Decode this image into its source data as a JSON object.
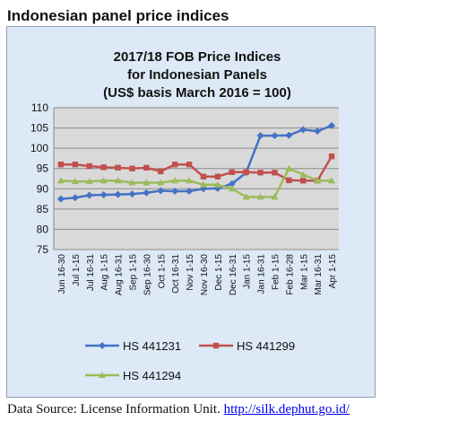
{
  "page": {
    "heading": "Indonesian panel price indices",
    "source_prefix": "Data Source: License Information Unit. ",
    "source_link": "http://silk.dephut.go.id/"
  },
  "chart_data": {
    "type": "line",
    "title_lines": [
      "2017/18 FOB Price Indices",
      "for Indonesian Panels",
      "(US$ basis March 2016 = 100)"
    ],
    "categories": [
      "Jun 16-30",
      "Jul 1-15",
      "Jul 16-31",
      "Aug 1-15",
      "Aug 16-31",
      "Sep 1-15",
      "Sep 16-30",
      "Oct 1-15",
      "Oct 16-31",
      "Nov 1-15",
      "Nov 16-30",
      "Dec 1-15",
      "Dec 16-31",
      "Jan 1-15",
      "Jan 16-31",
      "Feb 1-15",
      "Feb 16-28",
      "Mar 1-15",
      "Mar 16-31",
      "Apr 1-15"
    ],
    "ylim": [
      75,
      110
    ],
    "yticks": [
      75,
      80,
      85,
      90,
      95,
      100,
      105,
      110
    ],
    "grid": true,
    "legend_position": "bottom",
    "series": [
      {
        "name": "HS 441231",
        "color": "#4472c4",
        "marker": "diamond",
        "values": [
          87.5,
          87.8,
          88.4,
          88.5,
          88.6,
          88.7,
          89.0,
          89.5,
          89.4,
          89.4,
          90.0,
          90.1,
          91.2,
          94.0,
          103.1,
          103.1,
          103.2,
          104.6,
          104.2,
          105.6
        ]
      },
      {
        "name": "HS 441299",
        "color": "#c0504d",
        "marker": "square",
        "values": [
          96.0,
          96.0,
          95.6,
          95.3,
          95.2,
          95.0,
          95.2,
          94.3,
          96.0,
          96.0,
          93.0,
          93.0,
          94.1,
          94.1,
          94.0,
          94.0,
          92.1,
          92.0,
          92.0,
          98.0
        ]
      },
      {
        "name": "HS 441294",
        "color": "#9bbb59",
        "marker": "triangle",
        "values": [
          92.0,
          91.8,
          91.8,
          92.0,
          92.0,
          91.5,
          91.5,
          91.5,
          92.0,
          92.0,
          91.0,
          91.0,
          90.0,
          88.0,
          88.0,
          88.0,
          95.0,
          93.5,
          92.0,
          92.0
        ]
      }
    ]
  }
}
